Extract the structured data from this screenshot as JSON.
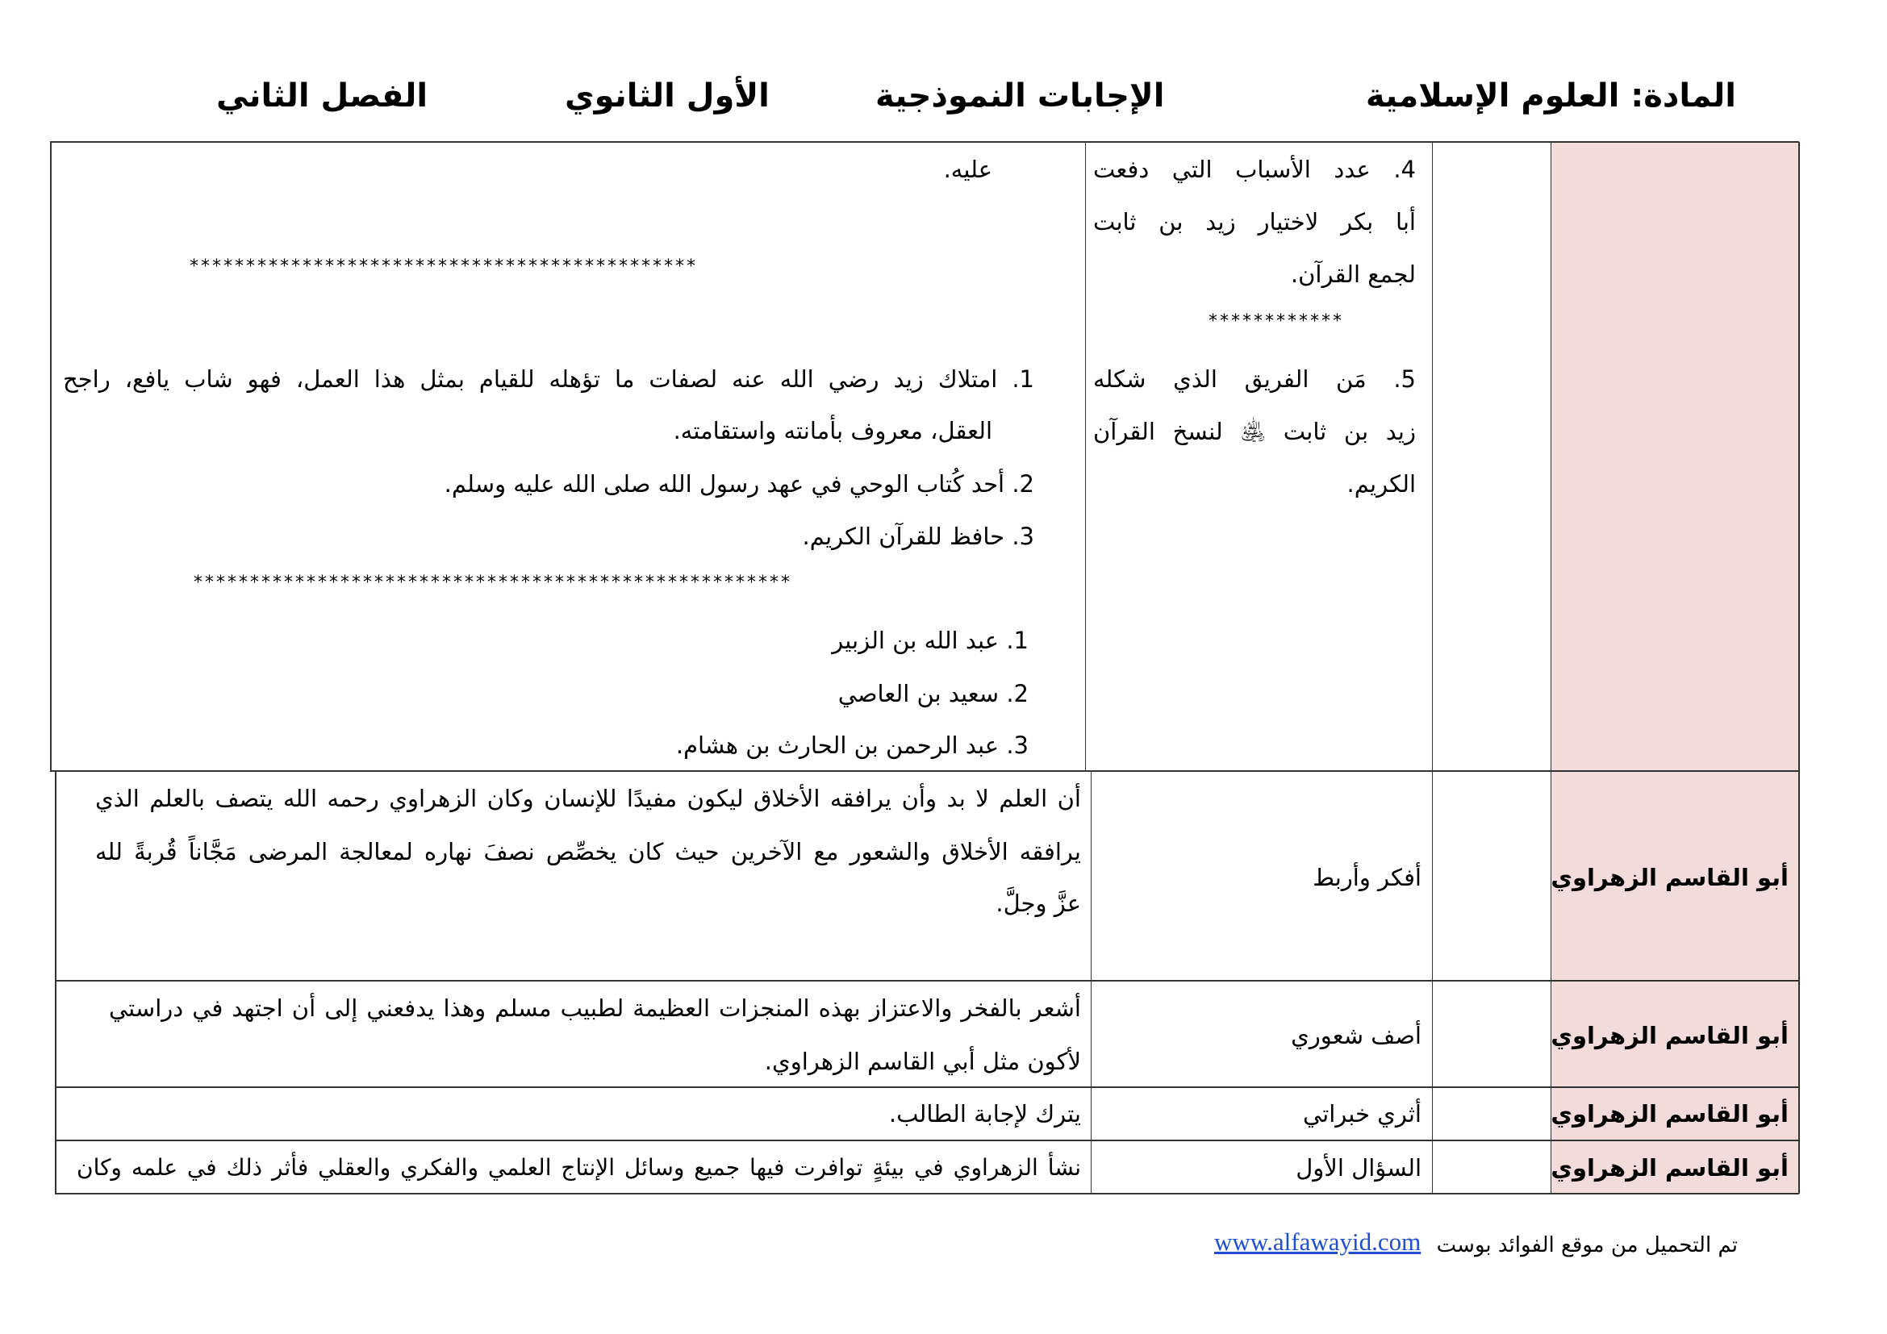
{
  "header": {
    "subject": "المادة: العلوم الإسلامية",
    "title": "الإجابات النموذجية",
    "grade": "الأول الثانوي",
    "term": "الفصل الثاني"
  },
  "row1": {
    "questions": {
      "q4_lines": [
        "4.     عدد الأسباب التي دفعت",
        "أبا بكر لاختيار زيد بن ثابت",
        "لجمع القرآن."
      ],
      "separator": "************",
      "q5_lines": [
        "5.     مَن الفريق الذي شكله",
        "زيد بن ثابت ﵁ لنسخ القرآن",
        "الكريم."
      ]
    },
    "answers": {
      "top": "عليه.",
      "separator1": "*********************************************",
      "reasons": [
        "1. امتلاك زيد رضي الله عنه لصفات ما تؤهله للقيام بمثل هذا العمل، فهو شاب يافع، راجح",
        "العقل، معروف بأمانته واستقامته.",
        "2. أحد كُتاب الوحي في عهد رسول الله صلى الله عليه وسلم.",
        "3. حافظ للقرآن الكريم."
      ],
      "separator2": "*****************************************************",
      "team": [
        "1. عبد الله بن الزبير",
        "2. سعيد بن العاصي",
        "3. عبد الرحمن بن الحارث بن هشام."
      ]
    }
  },
  "rows": [
    {
      "lesson": "أبو القاسم الزهراوي",
      "question": "أفكر وأربط",
      "answer_lines": [
        "أن العلم لا بد وأن يرافقه الأخلاق ليكون مفيدًا للإنسان وكان الزهراوي رحمه الله  يتصف بالعلم الذي",
        "يرافقه الأخلاق والشعور مع الآخرين حيث كان يخصِّص نصفَ نهاره لمعالجة المرضى مَجَّاناً قُربةً لله",
        "عزَّ وجلَّ."
      ]
    },
    {
      "lesson": "أبو القاسم الزهراوي",
      "question": "أصف شعوري",
      "answer_lines": [
        "أشعر بالفخر والاعتزاز بهذه المنجزات العظيمة  لطبيب مسلم وهذا يدفعني إلى أن اجتهد في دراستي",
        "لأكون مثل أبي القاسم الزهراوي."
      ]
    },
    {
      "lesson": "أبو القاسم الزهراوي",
      "question": "أثري خبراتي",
      "answer_lines": [
        "يترك لإجابة الطالب."
      ]
    },
    {
      "lesson": "أبو القاسم الزهراوي",
      "question": "السؤال الأول",
      "answer_lines": [
        "نشأ الزهراوي في بيئةٍ توافرت فيها جميع وسائل الإنتاج العلمي والفكري والعقلي فأثر ذلك في علمه وكان"
      ]
    }
  ],
  "footer": {
    "text": "تم التحميل من موقع الفوائد بوست",
    "link": "www.alfawayid.com"
  },
  "colors": {
    "lesson_bg": "#f2dcdb",
    "link": "#1f4fd1"
  }
}
